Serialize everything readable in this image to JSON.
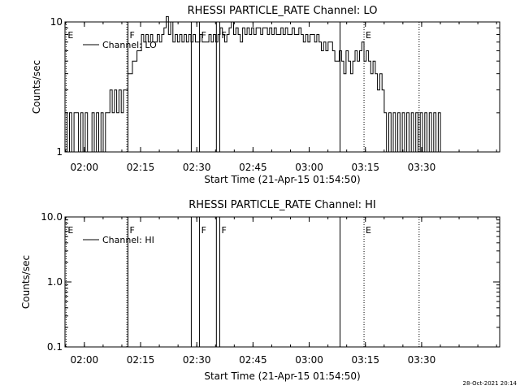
{
  "footer_stamp": "28-Oct-2021 20:14",
  "chart_data": [
    {
      "type": "line",
      "title": "RHESSI PARTICLE_RATE Channel: LO",
      "xlabel": "Start Time (21-Apr-15 01:54:50)",
      "ylabel": "Counts/sec",
      "yscale": "log",
      "ylim": [
        1,
        10
      ],
      "yticks": [
        1,
        10
      ],
      "ytick_labels": [
        "1",
        "10"
      ],
      "xlim_minutes": [
        0,
        116
      ],
      "xticks": [
        "02:00",
        "02:15",
        "02:30",
        "02:45",
        "03:00",
        "03:15",
        "03:30"
      ],
      "xtick_positions_minutes": [
        5.17,
        20.17,
        35.17,
        50.17,
        65.17,
        80.17,
        95.17
      ],
      "grid": false,
      "legend": {
        "position": "top-left",
        "entries": [
          "Channel: LO"
        ]
      },
      "series": [
        {
          "name": "Channel: LO",
          "points": [
            [
              0,
              2
            ],
            [
              0.6,
              1
            ],
            [
              1.2,
              2
            ],
            [
              1.8,
              1
            ],
            [
              2.4,
              2
            ],
            [
              3,
              2
            ],
            [
              3.6,
              1
            ],
            [
              4.2,
              2
            ],
            [
              4.8,
              1
            ],
            [
              5.4,
              2
            ],
            [
              6,
              1
            ],
            [
              6.6,
              1
            ],
            [
              7.2,
              2
            ],
            [
              7.8,
              1
            ],
            [
              8.4,
              2
            ],
            [
              9,
              1
            ],
            [
              9.6,
              2
            ],
            [
              10.2,
              1
            ],
            [
              10.8,
              2
            ],
            [
              11.4,
              2
            ],
            [
              12,
              3
            ],
            [
              12.6,
              2
            ],
            [
              13.2,
              3
            ],
            [
              13.8,
              2
            ],
            [
              14.4,
              3
            ],
            [
              15,
              2
            ],
            [
              15.6,
              3
            ],
            [
              16.2,
              3
            ],
            [
              16.8,
              4
            ],
            [
              17.4,
              4
            ],
            [
              18,
              5
            ],
            [
              18.6,
              5
            ],
            [
              19.2,
              6
            ],
            [
              19.8,
              6
            ],
            [
              20.4,
              8
            ],
            [
              21,
              7
            ],
            [
              21.6,
              8
            ],
            [
              22.2,
              7
            ],
            [
              22.8,
              8
            ],
            [
              23.4,
              7
            ],
            [
              24,
              7
            ],
            [
              24.6,
              8
            ],
            [
              25.2,
              7
            ],
            [
              25.8,
              8
            ],
            [
              26.4,
              9
            ],
            [
              27,
              11
            ],
            [
              27.6,
              8
            ],
            [
              28.2,
              10
            ],
            [
              28.8,
              7
            ],
            [
              29.4,
              8
            ],
            [
              30,
              7
            ],
            [
              30.6,
              8
            ],
            [
              31.2,
              7
            ],
            [
              31.8,
              8
            ],
            [
              32.4,
              7
            ],
            [
              33,
              8
            ],
            [
              33.6,
              7
            ],
            [
              34.2,
              8
            ],
            [
              34.8,
              7
            ],
            [
              35.4,
              7
            ],
            [
              36,
              8
            ],
            [
              36.6,
              7
            ],
            [
              37.2,
              7
            ],
            [
              37.8,
              7
            ],
            [
              38.4,
              8
            ],
            [
              39,
              7
            ],
            [
              39.6,
              8
            ],
            [
              40.2,
              7
            ],
            [
              40.8,
              8
            ],
            [
              41.4,
              9
            ],
            [
              42,
              8
            ],
            [
              42.6,
              7
            ],
            [
              43.2,
              8
            ],
            [
              43.8,
              9
            ],
            [
              44.4,
              10
            ],
            [
              45,
              8
            ],
            [
              45.6,
              9
            ],
            [
              46.2,
              8
            ],
            [
              46.8,
              7
            ],
            [
              47.4,
              9
            ],
            [
              48,
              8
            ],
            [
              48.6,
              9
            ],
            [
              49.2,
              8
            ],
            [
              49.8,
              9
            ],
            [
              50.4,
              8
            ],
            [
              51,
              9
            ],
            [
              51.6,
              9
            ],
            [
              52.2,
              8
            ],
            [
              52.8,
              9
            ],
            [
              53.4,
              9
            ],
            [
              54,
              8
            ],
            [
              54.6,
              9
            ],
            [
              55.2,
              8
            ],
            [
              55.8,
              9
            ],
            [
              56.4,
              8
            ],
            [
              57,
              8
            ],
            [
              57.6,
              9
            ],
            [
              58.2,
              8
            ],
            [
              58.8,
              9
            ],
            [
              59.4,
              8
            ],
            [
              60,
              8
            ],
            [
              60.6,
              9
            ],
            [
              61.2,
              8
            ],
            [
              61.8,
              8
            ],
            [
              62.4,
              9
            ],
            [
              63,
              8
            ],
            [
              63.6,
              7
            ],
            [
              64.2,
              8
            ],
            [
              64.8,
              7
            ],
            [
              65.4,
              8
            ],
            [
              66,
              8
            ],
            [
              66.6,
              7
            ],
            [
              67.2,
              8
            ],
            [
              67.8,
              7
            ],
            [
              68.4,
              6
            ],
            [
              69,
              7
            ],
            [
              69.6,
              6
            ],
            [
              70.2,
              7
            ],
            [
              70.8,
              7
            ],
            [
              71.4,
              6
            ],
            [
              72,
              5
            ],
            [
              72.6,
              5
            ],
            [
              73.2,
              6
            ],
            [
              73.8,
              5
            ],
            [
              74.4,
              4
            ],
            [
              75,
              6
            ],
            [
              75.6,
              5
            ],
            [
              76.2,
              4
            ],
            [
              76.8,
              5
            ],
            [
              77.4,
              6
            ],
            [
              78,
              5
            ],
            [
              78.6,
              6
            ],
            [
              79.2,
              7
            ],
            [
              79.8,
              5
            ],
            [
              80.4,
              6
            ],
            [
              81,
              5
            ],
            [
              81.6,
              4
            ],
            [
              82.2,
              5
            ],
            [
              82.8,
              4
            ],
            [
              83.4,
              3
            ],
            [
              84,
              4
            ],
            [
              84.6,
              3
            ],
            [
              85.2,
              2
            ],
            [
              85.8,
              1
            ],
            [
              86.4,
              2
            ],
            [
              87,
              1
            ],
            [
              87.6,
              2
            ],
            [
              88.2,
              1
            ],
            [
              88.8,
              2
            ],
            [
              89.4,
              1
            ],
            [
              90,
              2
            ],
            [
              90.6,
              1
            ],
            [
              91.2,
              2
            ],
            [
              91.8,
              1
            ],
            [
              92.4,
              2
            ],
            [
              93,
              1
            ],
            [
              93.6,
              2
            ],
            [
              94.2,
              1
            ],
            [
              94.8,
              2
            ],
            [
              95.4,
              1
            ],
            [
              96,
              2
            ],
            [
              96.6,
              1
            ],
            [
              97.2,
              2
            ],
            [
              97.8,
              1
            ],
            [
              98.4,
              2
            ],
            [
              99,
              1
            ],
            [
              99.6,
              2
            ],
            [
              100.2,
              1
            ]
          ]
        }
      ],
      "event_lines": [
        {
          "minute": 0.3,
          "style": "dotted",
          "label": "E"
        },
        {
          "minute": 16.5,
          "style": "dotted",
          "label": ""
        },
        {
          "minute": 16.8,
          "style": "solid",
          "label": "F"
        },
        {
          "minute": 33.7,
          "style": "solid",
          "label": ""
        },
        {
          "minute": 35.9,
          "style": "solid",
          "label": "F"
        },
        {
          "minute": 40.4,
          "style": "solid",
          "label": ""
        },
        {
          "minute": 41.3,
          "style": "solid",
          "label": "F"
        },
        {
          "minute": 73.4,
          "style": "solid",
          "label": ""
        },
        {
          "minute": 79.8,
          "style": "dotted",
          "label": "E"
        },
        {
          "minute": 94.5,
          "style": "dotted",
          "label": ""
        }
      ]
    },
    {
      "type": "line",
      "title": "RHESSI PARTICLE_RATE Channel: HI",
      "xlabel": "Start Time (21-Apr-15 01:54:50)",
      "ylabel": "Counts/sec",
      "yscale": "log",
      "ylim": [
        0.1,
        10
      ],
      "yticks": [
        0.1,
        1,
        10
      ],
      "ytick_labels": [
        "0.1",
        "1.0",
        "10.0"
      ],
      "xlim_minutes": [
        0,
        116
      ],
      "xticks": [
        "02:00",
        "02:15",
        "02:30",
        "02:45",
        "03:00",
        "03:15",
        "03:30"
      ],
      "xtick_positions_minutes": [
        5.17,
        20.17,
        35.17,
        50.17,
        65.17,
        80.17,
        95.17
      ],
      "grid": false,
      "legend": {
        "position": "top-left",
        "entries": [
          "Channel: HI"
        ]
      },
      "series": [
        {
          "name": "Channel: HI",
          "points": []
        }
      ],
      "event_lines": [
        {
          "minute": 0.3,
          "style": "dotted",
          "label": "E"
        },
        {
          "minute": 16.5,
          "style": "dotted",
          "label": ""
        },
        {
          "minute": 16.8,
          "style": "solid",
          "label": "F"
        },
        {
          "minute": 33.7,
          "style": "solid",
          "label": ""
        },
        {
          "minute": 35.9,
          "style": "solid",
          "label": "F"
        },
        {
          "minute": 40.4,
          "style": "solid",
          "label": ""
        },
        {
          "minute": 41.3,
          "style": "solid",
          "label": "F"
        },
        {
          "minute": 73.4,
          "style": "solid",
          "label": ""
        },
        {
          "minute": 79.8,
          "style": "dotted",
          "label": "E"
        },
        {
          "minute": 94.5,
          "style": "dotted",
          "label": ""
        }
      ]
    }
  ]
}
